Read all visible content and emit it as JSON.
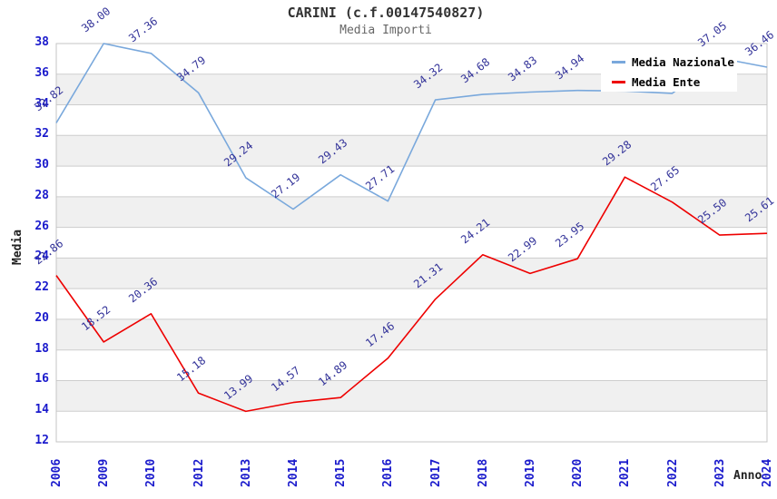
{
  "header": {
    "title": "CARINI (c.f.00147540827)",
    "subtitle": "Media Importi"
  },
  "axes": {
    "x_title": "Anno",
    "y_title": "Media",
    "y_ticks": [
      "38",
      "36",
      "34",
      "32",
      "30",
      "28",
      "26",
      "24",
      "22",
      "20",
      "18",
      "16",
      "14",
      "12"
    ],
    "x_ticks": [
      "2006",
      "2009",
      "2010",
      "2012",
      "2013",
      "2014",
      "2015",
      "2016",
      "2017",
      "2018",
      "2019",
      "2020",
      "2021",
      "2022",
      "2023",
      "2024"
    ]
  },
  "legend": {
    "items": [
      {
        "label": "Media Nazionale",
        "color": "#79a8dc"
      },
      {
        "label": "Media Ente",
        "color": "#ee0000"
      }
    ]
  },
  "colors": {
    "band_fill": "#f0f0f0",
    "grid_line": "#cdcdcd",
    "plot_border": "#c4c4c4",
    "tick_label": "#1a1acc",
    "data_label": "#333399",
    "series_nazionale": "#79a8dc",
    "series_ente": "#ee0000"
  },
  "chart_data": {
    "type": "line",
    "title": "CARINI (c.f.00147540827)",
    "subtitle": "Media Importi",
    "xlabel": "Anno",
    "ylabel": "Media",
    "x": [
      "2006",
      "2009",
      "2010",
      "2012",
      "2013",
      "2014",
      "2015",
      "2016",
      "2017",
      "2018",
      "2019",
      "2020",
      "2021",
      "2022",
      "2023",
      "2024"
    ],
    "series": [
      {
        "name": "Media Nazionale",
        "color": "#79a8dc",
        "values": [
          32.82,
          38.0,
          37.36,
          34.79,
          29.24,
          27.19,
          29.43,
          27.71,
          34.32,
          34.68,
          34.83,
          34.94,
          34.9,
          34.75,
          37.05,
          36.46
        ],
        "labels": [
          "32.82",
          "38.00",
          "37.36",
          "34.79",
          "29.24",
          "27.19",
          "29.43",
          "27.71",
          "34.32",
          "34.68",
          "34.83",
          "34.94",
          "",
          "",
          "37.05",
          "36.46"
        ]
      },
      {
        "name": "Media Ente",
        "color": "#ee0000",
        "values": [
          22.86,
          18.52,
          20.36,
          15.18,
          13.99,
          14.57,
          14.89,
          17.46,
          21.31,
          24.21,
          22.99,
          23.95,
          29.28,
          27.65,
          25.5,
          25.61
        ],
        "labels": [
          "22.86",
          "18.52",
          "20.36",
          "15.18",
          "13.99",
          "14.57",
          "14.89",
          "17.46",
          "21.31",
          "24.21",
          "22.99",
          "23.95",
          "29.28",
          "27.65",
          "25.50",
          "25.61"
        ]
      }
    ],
    "ylim": [
      12,
      38
    ],
    "y_tick_step": 2,
    "grid": "horizontal bands, shaded every other 2-unit interval",
    "legend_position": "top-right"
  }
}
